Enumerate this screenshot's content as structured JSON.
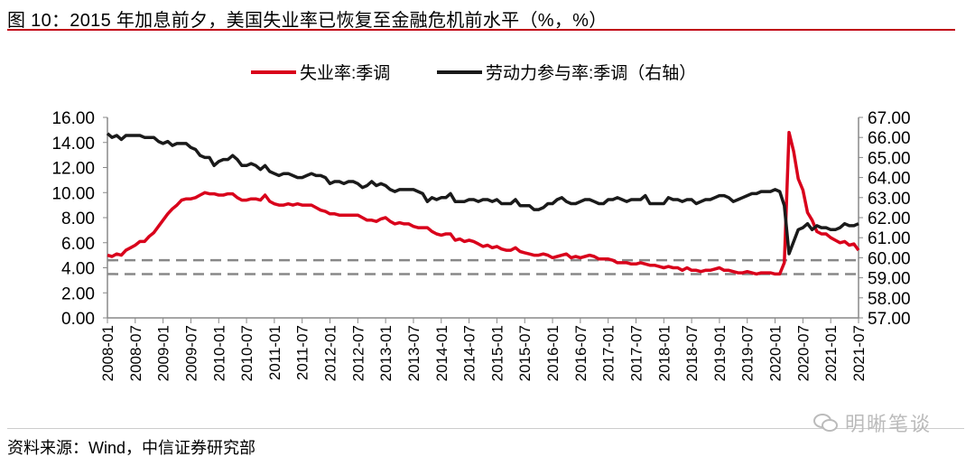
{
  "title": "图 10：2015 年加息前夕，美国失业率已恢复至金融危机前水平（%，%）",
  "source": "资料来源：Wind，中信证券研究部",
  "watermark": "明晰笔谈",
  "colors": {
    "unemployment": "#d9001b",
    "lfpr": "#1a1a1a",
    "reference": "#888888",
    "title_rule": "#c00010"
  },
  "chart_data": {
    "type": "line",
    "title": "2015 年加息前夕，美国失业率已恢复至金融危机前水平（%，%）",
    "legend_position": "top-center",
    "x_start": "2008-01",
    "x_end": "2021-07",
    "x_frequency": "monthly",
    "x_tick_labels": [
      "2008-01",
      "2008-07",
      "2009-01",
      "2009-07",
      "2010-01",
      "2010-07",
      "2011-01",
      "2011-07",
      "2012-01",
      "2012-07",
      "2013-01",
      "2013-07",
      "2014-01",
      "2014-07",
      "2015-01",
      "2015-07",
      "2016-01",
      "2016-07",
      "2017-01",
      "2017-07",
      "2018-01",
      "2018-07",
      "2019-01",
      "2019-07",
      "2020-01",
      "2020-07",
      "2021-01",
      "2021-07"
    ],
    "y_left": {
      "range": [
        0,
        16
      ],
      "ticks": [
        "0.00",
        "2.00",
        "4.00",
        "6.00",
        "8.00",
        "10.00",
        "12.00",
        "14.00",
        "16.00"
      ]
    },
    "y_right": {
      "range": [
        57,
        67
      ],
      "ticks": [
        "57.00",
        "58.00",
        "59.00",
        "60.00",
        "61.00",
        "62.00",
        "63.00",
        "64.00",
        "65.00",
        "66.00",
        "67.00"
      ]
    },
    "reference_lines_left_axis": [
      4.6,
      3.5
    ],
    "series": [
      {
        "name": "失业率:季调",
        "axis": "left",
        "values": [
          5.0,
          4.9,
          5.1,
          5.0,
          5.4,
          5.6,
          5.8,
          6.1,
          6.1,
          6.5,
          6.8,
          7.3,
          7.8,
          8.3,
          8.7,
          9.0,
          9.4,
          9.5,
          9.5,
          9.6,
          9.8,
          10.0,
          9.9,
          9.9,
          9.8,
          9.8,
          9.9,
          9.9,
          9.6,
          9.4,
          9.4,
          9.5,
          9.5,
          9.4,
          9.8,
          9.3,
          9.1,
          9.0,
          9.0,
          9.1,
          9.0,
          9.1,
          9.0,
          9.0,
          9.0,
          8.8,
          8.6,
          8.5,
          8.3,
          8.3,
          8.2,
          8.2,
          8.2,
          8.2,
          8.2,
          8.0,
          7.8,
          7.8,
          7.7,
          7.9,
          8.0,
          7.7,
          7.5,
          7.6,
          7.5,
          7.5,
          7.3,
          7.2,
          7.2,
          7.2,
          6.9,
          6.7,
          6.6,
          6.7,
          6.7,
          6.2,
          6.3,
          6.1,
          6.2,
          6.1,
          5.9,
          5.7,
          5.8,
          5.6,
          5.7,
          5.5,
          5.4,
          5.4,
          5.6,
          5.3,
          5.2,
          5.1,
          5.0,
          5.0,
          5.1,
          5.0,
          4.8,
          4.9,
          5.0,
          5.1,
          4.8,
          4.9,
          4.8,
          4.9,
          5.0,
          4.9,
          4.7,
          4.7,
          4.7,
          4.6,
          4.4,
          4.4,
          4.4,
          4.3,
          4.3,
          4.4,
          4.3,
          4.2,
          4.2,
          4.1,
          4.0,
          4.1,
          4.0,
          4.0,
          3.8,
          4.0,
          3.8,
          3.8,
          3.7,
          3.8,
          3.8,
          3.9,
          4.0,
          3.8,
          3.8,
          3.7,
          3.6,
          3.6,
          3.7,
          3.6,
          3.5,
          3.6,
          3.6,
          3.6,
          3.5,
          3.5,
          4.4,
          14.8,
          13.3,
          11.1,
          10.2,
          8.4,
          7.8,
          6.9,
          6.7,
          6.7,
          6.4,
          6.2,
          6.0,
          6.1,
          5.8,
          5.9,
          5.4
        ]
      },
      {
        "name": "劳动力参与率:季调（右轴）",
        "axis": "right",
        "values": [
          66.2,
          66.0,
          66.1,
          65.9,
          66.1,
          66.1,
          66.1,
          66.1,
          66.0,
          66.0,
          66.0,
          65.8,
          65.7,
          65.8,
          65.6,
          65.7,
          65.7,
          65.7,
          65.5,
          65.4,
          65.1,
          65.0,
          65.0,
          64.6,
          64.8,
          64.9,
          64.9,
          65.1,
          64.9,
          64.6,
          64.6,
          64.7,
          64.6,
          64.4,
          64.6,
          64.3,
          64.2,
          64.1,
          64.2,
          64.2,
          64.1,
          64.0,
          64.0,
          64.1,
          64.2,
          64.1,
          64.1,
          64.0,
          63.7,
          63.8,
          63.8,
          63.7,
          63.8,
          63.8,
          63.7,
          63.5,
          63.6,
          63.8,
          63.6,
          63.7,
          63.6,
          63.4,
          63.3,
          63.4,
          63.4,
          63.4,
          63.4,
          63.3,
          63.2,
          62.8,
          63.0,
          62.9,
          63.0,
          63.0,
          63.2,
          62.8,
          62.8,
          62.8,
          62.9,
          62.9,
          62.8,
          62.9,
          62.9,
          62.8,
          62.9,
          62.7,
          62.7,
          62.7,
          62.9,
          62.6,
          62.6,
          62.6,
          62.4,
          62.4,
          62.5,
          62.7,
          62.7,
          62.9,
          63.0,
          62.8,
          62.7,
          62.7,
          62.8,
          62.9,
          62.9,
          62.8,
          62.7,
          62.7,
          62.9,
          62.9,
          63.0,
          62.9,
          62.8,
          62.9,
          62.9,
          62.9,
          63.1,
          62.7,
          62.7,
          62.7,
          62.7,
          63.0,
          62.9,
          62.9,
          62.8,
          62.9,
          62.9,
          62.7,
          62.8,
          62.9,
          62.9,
          63.0,
          63.1,
          63.1,
          63.0,
          62.8,
          62.9,
          63.0,
          63.1,
          63.2,
          63.2,
          63.3,
          63.3,
          63.3,
          63.4,
          63.3,
          62.6,
          60.2,
          60.8,
          61.4,
          61.5,
          61.7,
          61.4,
          61.6,
          61.5,
          61.5,
          61.4,
          61.4,
          61.5,
          61.7,
          61.6,
          61.6,
          61.7
        ]
      }
    ]
  }
}
